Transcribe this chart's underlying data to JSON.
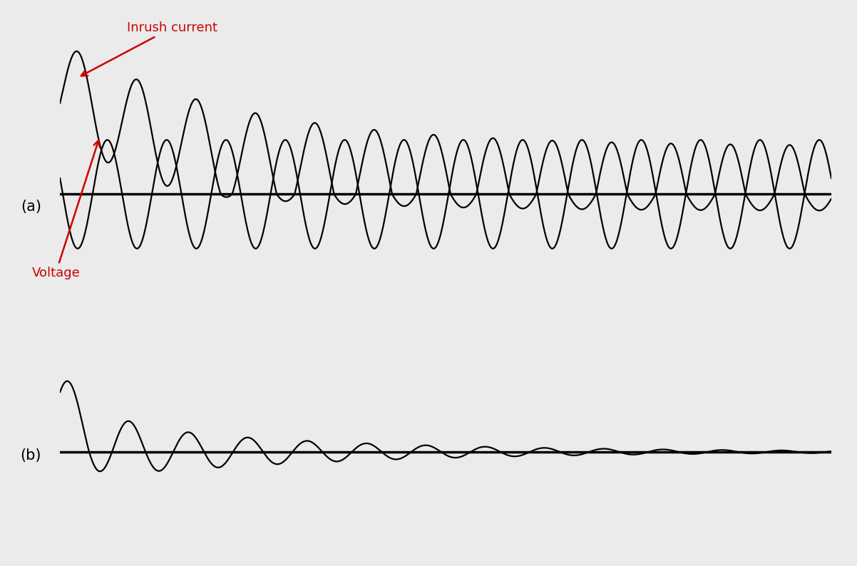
{
  "background_color": "#ebebeb",
  "line_color": "#000000",
  "annotation_color": "#cc0000",
  "label_a": "(a)",
  "label_b": "(b)",
  "label_inrush": "Inrush current",
  "label_voltage": "Voltage",
  "fig_width": 12.02,
  "fig_height": 7.94,
  "dpi": 100
}
